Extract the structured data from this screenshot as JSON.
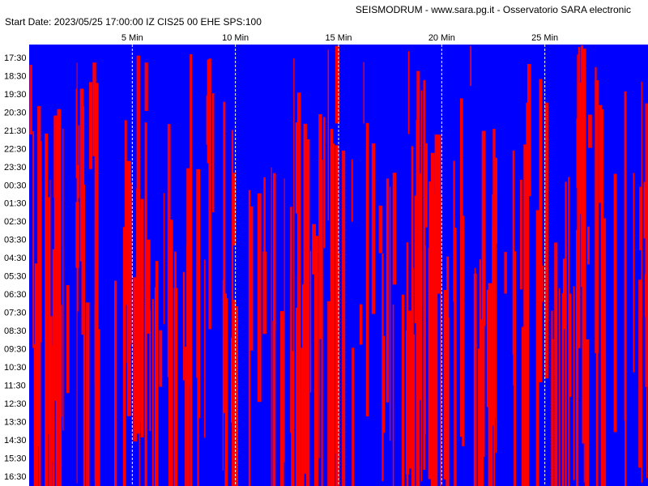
{
  "header": {
    "title": "SEISMODRUM - www.sara.pg.it - Osservatorio SARA electronic",
    "info": "Start Date: 2023/05/25 17:00:00 IZ CIS25 00 EHE  SPS:100"
  },
  "x_ticks": [
    "5 Min",
    "10 Min",
    "15 Min",
    "20 Min",
    "25 Min"
  ],
  "y_ticks": [
    "17:30",
    "18:30",
    "19:30",
    "20:30",
    "21:30",
    "22:30",
    "23:30",
    "00:30",
    "01:30",
    "02:30",
    "03:30",
    "04:30",
    "05:30",
    "06:30",
    "07:30",
    "08:30",
    "09:30",
    "10:30",
    "11:30",
    "12:30",
    "13:30",
    "14:30",
    "15:30",
    "16:30"
  ]
}
